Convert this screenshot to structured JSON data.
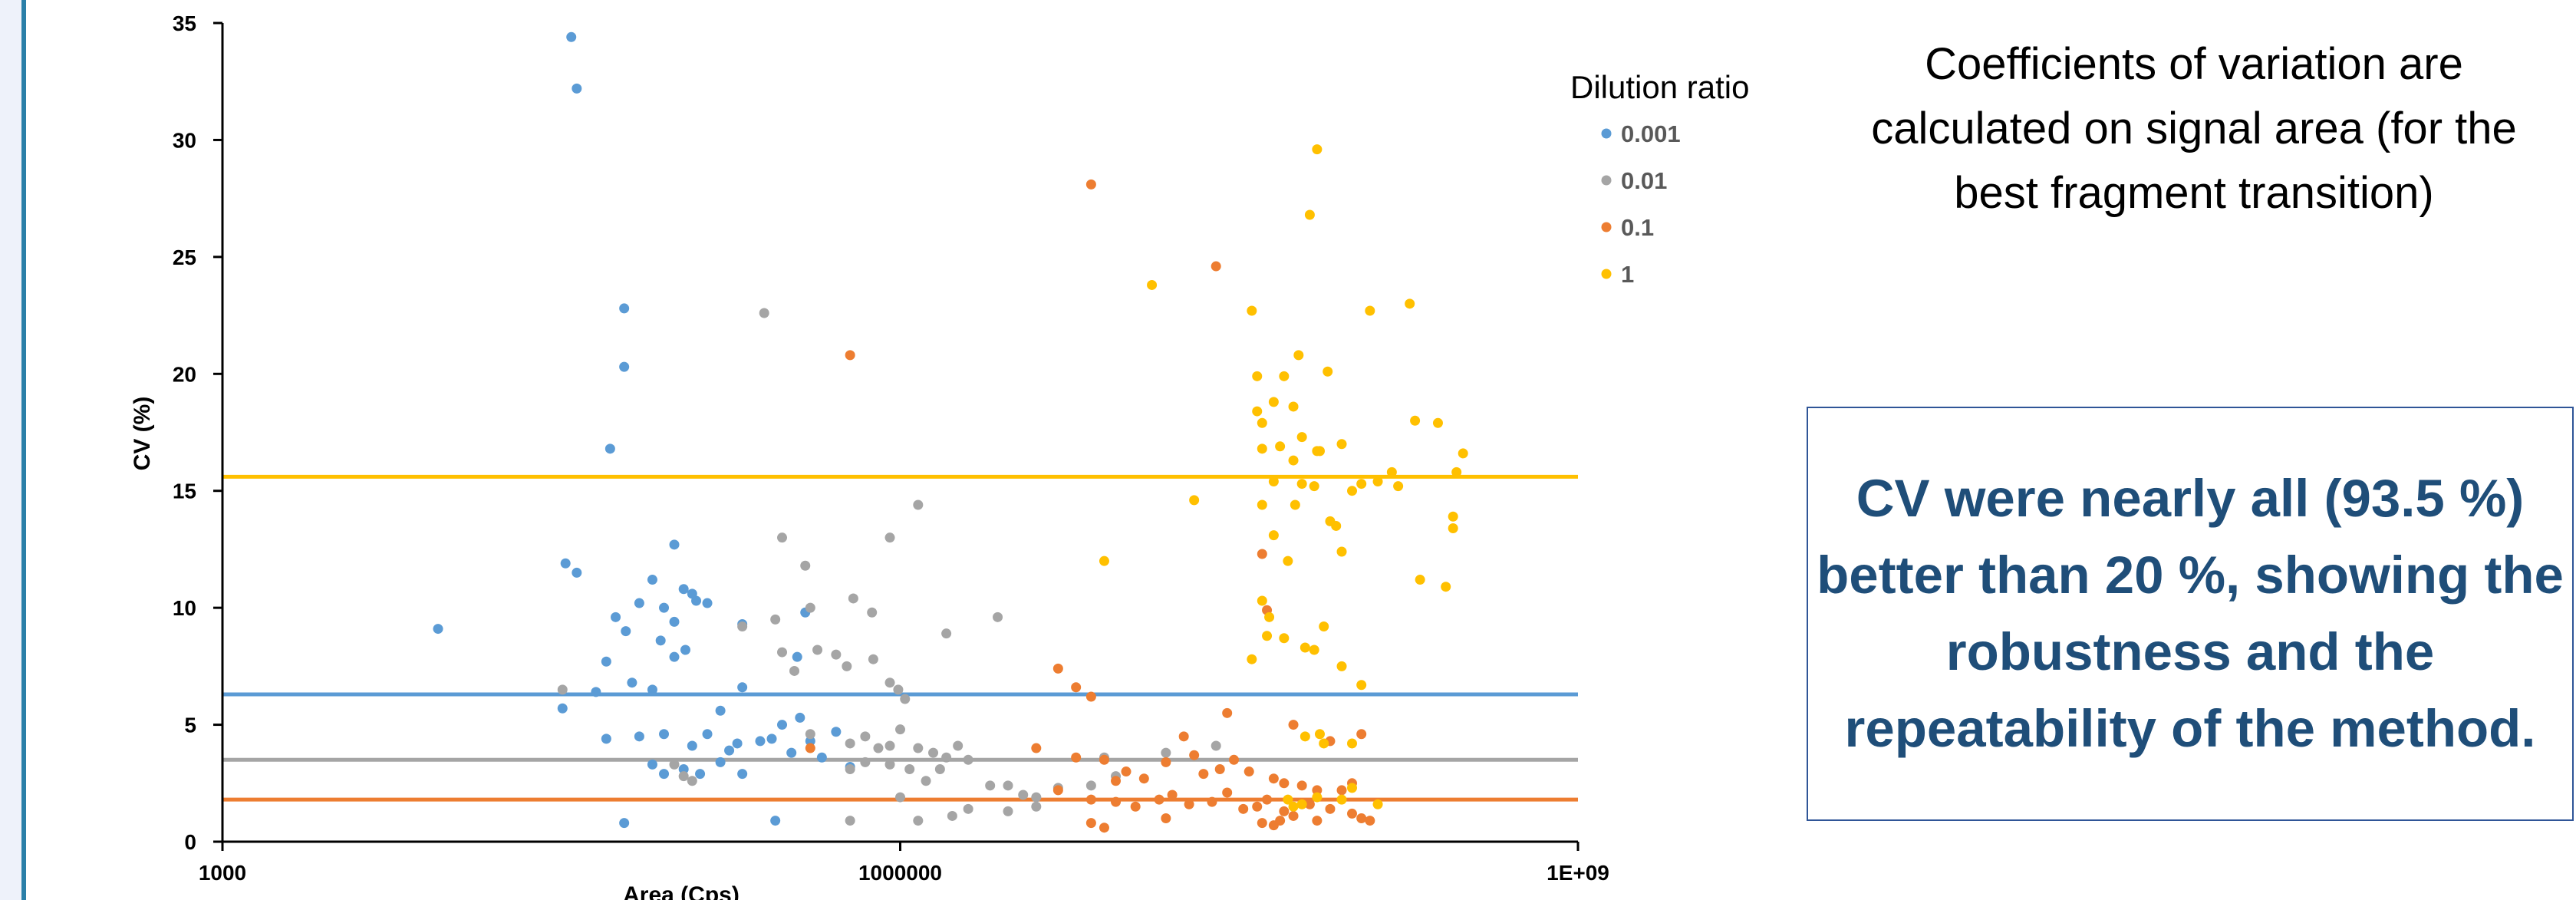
{
  "note": "Coefficients of variation are calculated on signal area (for the best fragment transition)",
  "conclusion": "CV were nearly all (93.5 %) better than 20 %, showing the robustness and the repeatability of the method.",
  "chart_data": {
    "type": "scatter",
    "title": "",
    "xlabel": "Area (Cps)",
    "ylabel": "CV (%)",
    "x_scale": "log",
    "xlim": [
      1000,
      1000000000
    ],
    "ylim": [
      0,
      35
    ],
    "x_ticks": [
      "1000",
      "1000000",
      "1E+09"
    ],
    "y_ticks": [
      "0",
      "5",
      "10",
      "15",
      "20",
      "25",
      "30",
      "35"
    ],
    "grid": false,
    "legend": {
      "title": "Dilution ratio",
      "position": "top-right"
    },
    "series": [
      {
        "name": "0.001",
        "color": "#5b9bd5",
        "mean_line": 6.3,
        "points": [
          [
            9000,
            9.1
          ],
          [
            35000,
            34.4
          ],
          [
            37000,
            32.2
          ],
          [
            60000,
            22.8
          ],
          [
            60000,
            20.3
          ],
          [
            52000,
            16.8
          ],
          [
            33000,
            11.9
          ],
          [
            37000,
            11.5
          ],
          [
            55000,
            9.6
          ],
          [
            61000,
            9.0
          ],
          [
            70000,
            10.2
          ],
          [
            80000,
            11.2
          ],
          [
            90000,
            10.0
          ],
          [
            100000,
            9.4
          ],
          [
            110000,
            10.8
          ],
          [
            125000,
            10.3
          ],
          [
            140000,
            10.2
          ],
          [
            100000,
            12.7
          ],
          [
            120000,
            10.6
          ],
          [
            112000,
            8.2
          ],
          [
            100000,
            7.9
          ],
          [
            87000,
            8.6
          ],
          [
            50000,
            7.7
          ],
          [
            45000,
            6.4
          ],
          [
            65000,
            6.8
          ],
          [
            80000,
            6.5
          ],
          [
            32000,
            5.7
          ],
          [
            50000,
            4.4
          ],
          [
            70000,
            4.5
          ],
          [
            90000,
            4.6
          ],
          [
            120000,
            4.1
          ],
          [
            140000,
            4.6
          ],
          [
            160000,
            5.6
          ],
          [
            175000,
            3.9
          ],
          [
            190000,
            4.2
          ],
          [
            200000,
            6.6
          ],
          [
            240000,
            4.3
          ],
          [
            300000,
            5.0
          ],
          [
            360000,
            5.3
          ],
          [
            330000,
            3.8
          ],
          [
            400000,
            4.3
          ],
          [
            450000,
            3.6
          ],
          [
            520000,
            4.7
          ],
          [
            600000,
            3.2
          ],
          [
            270000,
            4.4
          ],
          [
            80000,
            3.3
          ],
          [
            90000,
            2.9
          ],
          [
            110000,
            3.1
          ],
          [
            130000,
            2.9
          ],
          [
            160000,
            3.4
          ],
          [
            200000,
            2.9
          ],
          [
            60000,
            0.8
          ],
          [
            280000,
            0.9
          ],
          [
            200000,
            9.3
          ],
          [
            350000,
            7.9
          ],
          [
            380000,
            9.8
          ]
        ]
      },
      {
        "name": "0.01",
        "color": "#a5a5a5",
        "mean_line": 3.5,
        "points": [
          [
            32000,
            6.5
          ],
          [
            100000,
            3.3
          ],
          [
            110000,
            2.8
          ],
          [
            120000,
            2.6
          ],
          [
            250000,
            22.6
          ],
          [
            200000,
            9.2
          ],
          [
            300000,
            13.0
          ],
          [
            380000,
            11.8
          ],
          [
            280000,
            9.5
          ],
          [
            400000,
            10.0
          ],
          [
            300000,
            8.1
          ],
          [
            340000,
            7.3
          ],
          [
            430000,
            8.2
          ],
          [
            520000,
            8.0
          ],
          [
            620000,
            10.4
          ],
          [
            580000,
            7.5
          ],
          [
            760000,
            7.8
          ],
          [
            900000,
            6.8
          ],
          [
            980000,
            6.5
          ],
          [
            1050000,
            6.1
          ],
          [
            1200000,
            14.4
          ],
          [
            900000,
            13.0
          ],
          [
            750000,
            9.8
          ],
          [
            1000000,
            4.8
          ],
          [
            1600000,
            8.9
          ],
          [
            2700000,
            9.6
          ],
          [
            400000,
            4.6
          ],
          [
            600000,
            4.2
          ],
          [
            700000,
            4.5
          ],
          [
            800000,
            4.0
          ],
          [
            900000,
            4.1
          ],
          [
            1200000,
            4.0
          ],
          [
            1400000,
            3.8
          ],
          [
            1600000,
            3.6
          ],
          [
            1800000,
            4.1
          ],
          [
            2000000,
            3.5
          ],
          [
            600000,
            3.1
          ],
          [
            700000,
            3.4
          ],
          [
            900000,
            3.3
          ],
          [
            1100000,
            3.1
          ],
          [
            1300000,
            2.6
          ],
          [
            1500000,
            3.1
          ],
          [
            2500000,
            2.4
          ],
          [
            3000000,
            2.4
          ],
          [
            3500000,
            2.0
          ],
          [
            4000000,
            1.9
          ],
          [
            5000000,
            2.3
          ],
          [
            4000000,
            1.5
          ],
          [
            3000000,
            1.3
          ],
          [
            2000000,
            1.4
          ],
          [
            1700000,
            1.1
          ],
          [
            1200000,
            0.9
          ],
          [
            600000,
            0.9
          ],
          [
            1000000,
            1.9
          ],
          [
            8000000,
            3.6
          ],
          [
            9000000,
            2.8
          ],
          [
            7000000,
            2.4
          ],
          [
            15000000,
            3.8
          ],
          [
            25000000,
            4.1
          ]
        ]
      },
      {
        "name": "0.1",
        "color": "#ed7d31",
        "mean_line": 1.8,
        "points": [
          [
            7000000,
            28.1
          ],
          [
            25000000,
            24.6
          ],
          [
            600000,
            20.8
          ],
          [
            400000,
            4.0
          ],
          [
            5000000,
            7.4
          ],
          [
            6000000,
            6.6
          ],
          [
            7000000,
            6.2
          ],
          [
            28000000,
            5.5
          ],
          [
            40000000,
            12.3
          ],
          [
            42000000,
            9.9
          ],
          [
            55000000,
            5.0
          ],
          [
            80000000,
            4.3
          ],
          [
            110000000,
            4.6
          ],
          [
            4000000,
            4.0
          ],
          [
            6000000,
            3.6
          ],
          [
            8000000,
            3.5
          ],
          [
            9000000,
            2.6
          ],
          [
            10000000,
            3.0
          ],
          [
            12000000,
            2.7
          ],
          [
            15000000,
            3.4
          ],
          [
            18000000,
            4.5
          ],
          [
            20000000,
            3.7
          ],
          [
            22000000,
            2.9
          ],
          [
            26000000,
            3.1
          ],
          [
            30000000,
            3.5
          ],
          [
            35000000,
            3.0
          ],
          [
            45000000,
            2.7
          ],
          [
            50000000,
            2.5
          ],
          [
            60000000,
            2.4
          ],
          [
            70000000,
            2.2
          ],
          [
            90000000,
            2.2
          ],
          [
            100000000,
            2.5
          ],
          [
            5000000,
            2.2
          ],
          [
            7000000,
            1.8
          ],
          [
            9000000,
            1.7
          ],
          [
            11000000,
            1.5
          ],
          [
            14000000,
            1.8
          ],
          [
            16000000,
            2.0
          ],
          [
            19000000,
            1.6
          ],
          [
            24000000,
            1.7
          ],
          [
            28000000,
            2.1
          ],
          [
            33000000,
            1.4
          ],
          [
            38000000,
            1.5
          ],
          [
            42000000,
            1.8
          ],
          [
            50000000,
            1.3
          ],
          [
            55000000,
            1.1
          ],
          [
            65000000,
            1.6
          ],
          [
            80000000,
            1.4
          ],
          [
            100000000,
            1.2
          ],
          [
            7000000,
            0.8
          ],
          [
            8000000,
            0.6
          ],
          [
            15000000,
            1.0
          ],
          [
            40000000,
            0.8
          ],
          [
            45000000,
            0.7
          ],
          [
            48000000,
            0.9
          ],
          [
            70000000,
            0.9
          ],
          [
            110000000,
            1.0
          ],
          [
            120000000,
            0.9
          ]
        ]
      },
      {
        "name": "1",
        "color": "#ffc000",
        "mean_line": 15.6,
        "points": [
          [
            70000000,
            29.6
          ],
          [
            65000000,
            26.8
          ],
          [
            13000000,
            23.8
          ],
          [
            36000000,
            22.7
          ],
          [
            120000000,
            22.7
          ],
          [
            180000000,
            23.0
          ],
          [
            58000000,
            20.8
          ],
          [
            78000000,
            20.1
          ],
          [
            38000000,
            19.9
          ],
          [
            50000000,
            19.9
          ],
          [
            45000000,
            18.8
          ],
          [
            55000000,
            18.6
          ],
          [
            38000000,
            18.4
          ],
          [
            40000000,
            17.9
          ],
          [
            60000000,
            17.3
          ],
          [
            90000000,
            17.0
          ],
          [
            150000000,
            15.8
          ],
          [
            190000000,
            18.0
          ],
          [
            240000000,
            17.9
          ],
          [
            310000000,
            16.6
          ],
          [
            40000000,
            16.8
          ],
          [
            48000000,
            16.9
          ],
          [
            70000000,
            16.7
          ],
          [
            72000000,
            16.7
          ],
          [
            55000000,
            16.3
          ],
          [
            20000000,
            14.6
          ],
          [
            45000000,
            15.4
          ],
          [
            60000000,
            15.3
          ],
          [
            68000000,
            15.2
          ],
          [
            100000000,
            15.0
          ],
          [
            110000000,
            15.3
          ],
          [
            130000000,
            15.4
          ],
          [
            160000000,
            15.2
          ],
          [
            290000000,
            15.8
          ],
          [
            40000000,
            14.4
          ],
          [
            56000000,
            14.4
          ],
          [
            80000000,
            13.7
          ],
          [
            85000000,
            13.5
          ],
          [
            45000000,
            13.1
          ],
          [
            52000000,
            12.0
          ],
          [
            90000000,
            12.4
          ],
          [
            8000000,
            12.0
          ],
          [
            280000000,
            13.9
          ],
          [
            280000000,
            13.4
          ],
          [
            200000000,
            11.2
          ],
          [
            260000000,
            10.9
          ],
          [
            40000000,
            10.3
          ],
          [
            43000000,
            9.6
          ],
          [
            50000000,
            8.7
          ],
          [
            42000000,
            8.8
          ],
          [
            36000000,
            7.8
          ],
          [
            62000000,
            8.3
          ],
          [
            68000000,
            8.2
          ],
          [
            75000000,
            9.2
          ],
          [
            90000000,
            7.5
          ],
          [
            110000000,
            6.7
          ],
          [
            72000000,
            4.6
          ],
          [
            75000000,
            4.2
          ],
          [
            100000000,
            4.2
          ],
          [
            52000000,
            1.8
          ],
          [
            62000000,
            4.5
          ],
          [
            60000000,
            1.6
          ],
          [
            55000000,
            1.5
          ],
          [
            70000000,
            1.9
          ],
          [
            90000000,
            1.8
          ],
          [
            100000000,
            2.3
          ],
          [
            130000000,
            1.6
          ]
        ]
      }
    ]
  }
}
